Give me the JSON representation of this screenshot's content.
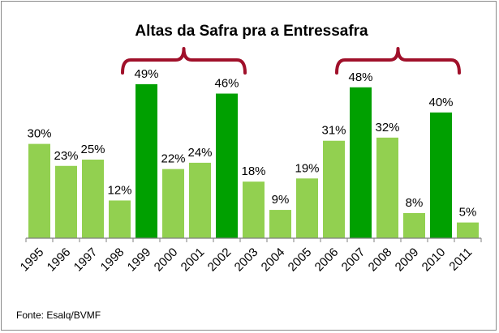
{
  "chart_data": {
    "type": "bar",
    "title": "Altas da Safra pra a Entressafra",
    "categories": [
      "1995",
      "1996",
      "1997",
      "1998",
      "1999",
      "2000",
      "2001",
      "2002",
      "2003",
      "2004",
      "2005",
      "2006",
      "2007",
      "2008",
      "2009",
      "2010",
      "2011"
    ],
    "values": [
      30,
      23,
      25,
      12,
      49,
      22,
      24,
      46,
      18,
      9,
      19,
      31,
      48,
      32,
      8,
      40,
      5
    ],
    "value_labels": [
      "30%",
      "23%",
      "25%",
      "12%",
      "49%",
      "22%",
      "24%",
      "46%",
      "18%",
      "9%",
      "19%",
      "31%",
      "48%",
      "32%",
      "8%",
      "40%",
      "5%"
    ],
    "highlighted": [
      "1999",
      "2002",
      "2007",
      "2010"
    ],
    "ylim": [
      0,
      58
    ],
    "grid": false,
    "legend": "none",
    "brackets": [
      {
        "from": "1999",
        "to": "2002"
      },
      {
        "from": "2007",
        "to": "2010"
      }
    ],
    "source": "Fonte: Esalq/BVMF",
    "colors": {
      "normal": "#92d050",
      "highlight": "#00a000",
      "bracket": "#a0102a",
      "axis": "#7f7f7f"
    }
  }
}
